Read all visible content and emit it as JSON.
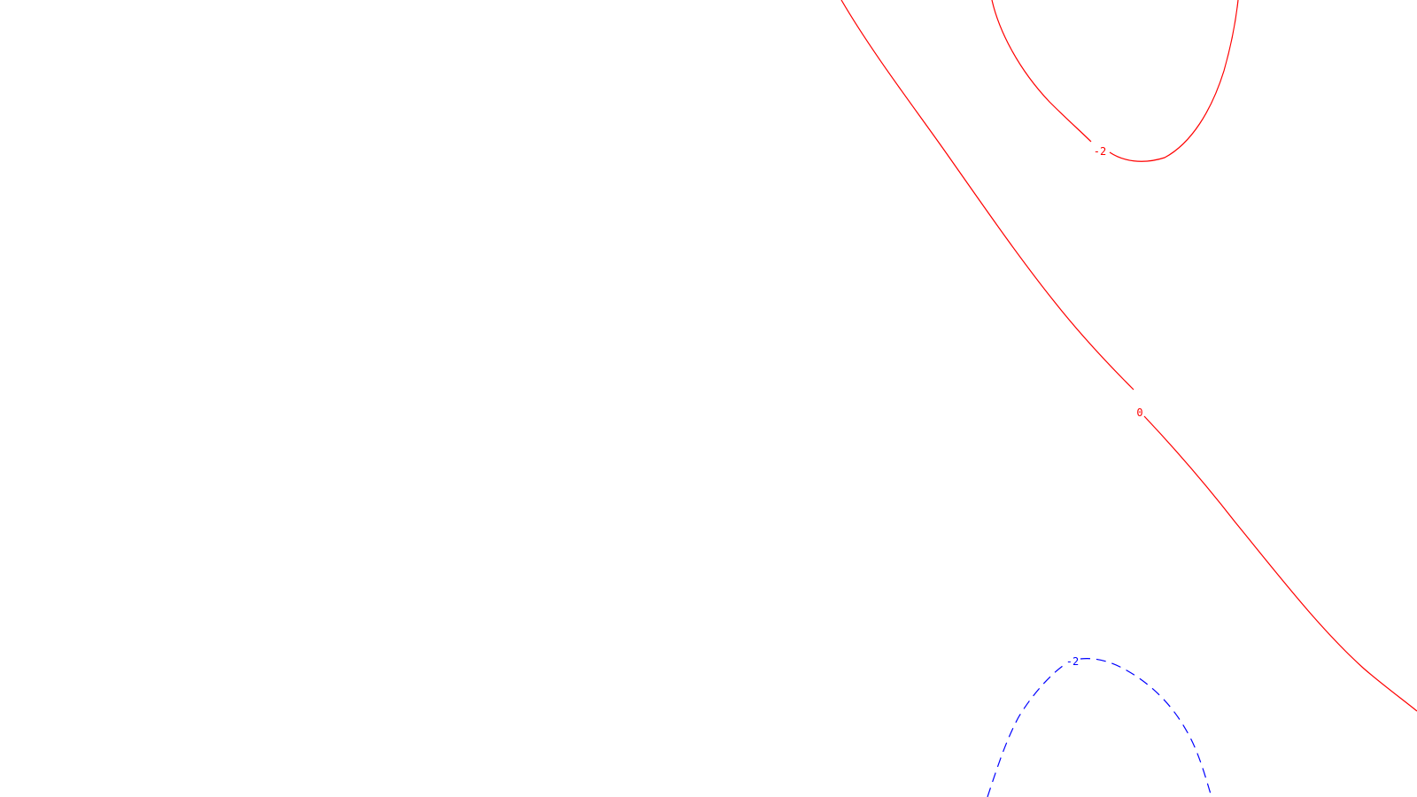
{
  "contours": [
    {
      "id": "upper-loop",
      "label": "-2",
      "color": "#ff0000",
      "style": "solid"
    },
    {
      "id": "zero-line",
      "label": "0",
      "color": "#ff0000",
      "style": "solid"
    },
    {
      "id": "lower-arch",
      "label": "-2",
      "color": "#0000ff",
      "style": "dashed"
    }
  ]
}
